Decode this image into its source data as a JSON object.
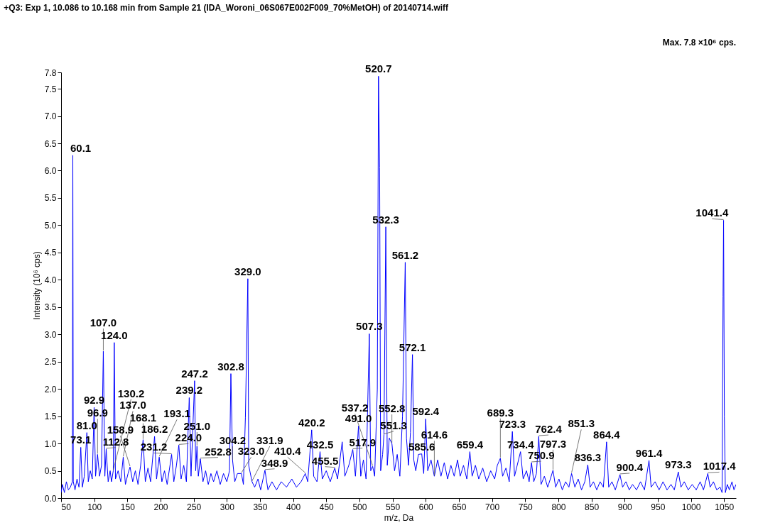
{
  "chart_data": {
    "type": "line",
    "title": "+Q3: Exp 1, 10.086 to 10.168 min from Sample 21 (IDA_Woroni_06S067E002F009_70%MetOH) of 20140714.wiff",
    "xlabel": "m/z, Da",
    "ylabel": "Intensity (10⁶ cps)",
    "xlim": [
      50,
      1068
    ],
    "ylim": [
      0,
      7.8
    ],
    "xticks": [
      50,
      100,
      150,
      200,
      250,
      300,
      350,
      400,
      450,
      500,
      550,
      600,
      650,
      700,
      750,
      800,
      850,
      900,
      950,
      1000,
      1050
    ],
    "yticks": [
      {
        "value": 0,
        "label": "0.0"
      },
      {
        "value": 0.5,
        "label": "0.5"
      },
      {
        "value": 1,
        "label": "1.0"
      },
      {
        "value": 1.5,
        "label": "1.5"
      },
      {
        "value": 2,
        "label": "2.0"
      },
      {
        "value": 2.5,
        "label": "2.5"
      },
      {
        "value": 3,
        "label": "3.0"
      },
      {
        "value": 3.5,
        "label": "3.5"
      },
      {
        "value": 4,
        "label": "4.0"
      },
      {
        "value": 4.5,
        "label": "4.5"
      },
      {
        "value": 5,
        "label": "5.0"
      },
      {
        "value": 5.5,
        "label": "5.5"
      },
      {
        "value": 6,
        "label": "6.0"
      },
      {
        "value": 6.5,
        "label": "6.5"
      },
      {
        "value": 7,
        "label": "7.0"
      },
      {
        "value": 7.5,
        "label": "7.5"
      },
      {
        "value": 7.8,
        "label": "7.8"
      }
    ],
    "grid": false,
    "marker": "none",
    "line_style": "solid",
    "series": [
      {
        "color": "#0000ff",
        "x": [
          50,
          52,
          55,
          58,
          61,
          64,
          67.0,
          67.7,
          68.4,
          71,
          74,
          77,
          79.7,
          82,
          85,
          88.9,
          91,
          94,
          97,
          99.8,
          102,
          105,
          108,
          111,
          113.7,
          116,
          118,
          121,
          124,
          126,
          128.7,
          130.2,
          132,
          136,
          140,
          143.7,
          147,
          151,
          154,
          158,
          162,
          166,
          170,
          173.7,
          177,
          181,
          185,
          191,
          194,
          198,
          202,
          206,
          210,
          216.7,
          220,
          224,
          227.6,
          231,
          235,
          239,
          243.3,
          246,
          251.4,
          253,
          255,
          257,
          260,
          264,
          268,
          272,
          276,
          280,
          285,
          290,
          295,
          300,
          304,
          306.1,
          308.7,
          312,
          316,
          322,
          325,
          328,
          331.7,
          333,
          338,
          342,
          347,
          351,
          357.5,
          362,
          368,
          375,
          382,
          390,
          398,
          405,
          412,
          418.4,
          422,
          428,
          431,
          436,
          440.6,
          444,
          450,
          456,
          462.8,
          467,
          474,
          478,
          484,
          490,
          494,
          498.6,
          502,
          506,
          510,
          514.9,
          517,
          520,
          523,
          527,
          528.8,
          530.5,
          532,
          535,
          537,
          539.8,
          542,
          545,
          549,
          553,
          557,
          561,
          565,
          569.1,
          571,
          574,
          577,
          580.0,
          582,
          585,
          589,
          594,
          597,
          600,
          603,
          608,
          613,
          618,
          623,
          628,
          633,
          638,
          643,
          648,
          652,
          657,
          662,
          666.6,
          670,
          675,
          680,
          686,
          692,
          698,
          704,
          708,
          712.6,
          716,
          721,
          726,
          730.7,
          734,
          738,
          743,
          747,
          752,
          756,
          759.6,
          763,
          767,
          770.5,
          774,
          779,
          784,
          788,
          792,
          796,
          801,
          806,
          811,
          816,
          820,
          825,
          830,
          835,
          840,
          844.5,
          848,
          853,
          858,
          863,
          868,
          872.8,
          876,
          881,
          886,
          893,
          897,
          902,
          907,
          912,
          918,
          924,
          930,
          936.8,
          940,
          946,
          952,
          958,
          964,
          970,
          975,
          981,
          985,
          990,
          996,
          1002,
          1008,
          1014,
          1019,
          1025.5,
          1029,
          1034,
          1039,
          1044,
          1047,
          1048.5,
          1049.3,
          1050.5,
          1052,
          1055,
          1058,
          1062,
          1065,
          1068
        ],
        "values": [
          0.1,
          0.25,
          0.1,
          0.3,
          0.15,
          0.2,
          0.3,
          6.28,
          0.3,
          0.15,
          0.35,
          0.2,
          0.93,
          0.2,
          0.4,
          1.2,
          0.3,
          0.5,
          0.35,
          1.66,
          0.4,
          0.8,
          0.4,
          0.6,
          2.69,
          0.4,
          0.9,
          0.3,
          0.5,
          0.3,
          0.5,
          2.85,
          0.35,
          0.5,
          0.3,
          0.75,
          0.25,
          0.45,
          0.57,
          0.3,
          0.5,
          0.25,
          0.6,
          1.07,
          0.3,
          0.55,
          0.3,
          1.13,
          0.35,
          0.75,
          0.3,
          0.5,
          0.25,
          0.8,
          0.3,
          0.6,
          0.97,
          0.35,
          0.6,
          0.3,
          1.84,
          0.4,
          2.15,
          0.5,
          0.95,
          0.4,
          0.72,
          0.3,
          0.5,
          0.25,
          0.45,
          0.3,
          0.5,
          0.25,
          0.45,
          0.3,
          0.5,
          2.28,
          0.69,
          0.3,
          0.45,
          0.45,
          0.25,
          1.48,
          4.02,
          0.6,
          0.3,
          0.2,
          0.35,
          0.15,
          0.51,
          0.15,
          0.3,
          0.15,
          0.3,
          0.2,
          0.35,
          0.2,
          0.3,
          0.45,
          0.3,
          1.25,
          0.4,
          0.3,
          0.85,
          0.35,
          0.5,
          0.3,
          0.55,
          0.35,
          1.03,
          0.4,
          0.6,
          0.89,
          0.4,
          1.32,
          0.4,
          0.7,
          0.35,
          3.01,
          0.5,
          0.58,
          0.4,
          2.0,
          7.73,
          6.05,
          0.5,
          0.8,
          1.16,
          4.97,
          0.6,
          1.1,
          1.0,
          0.5,
          0.8,
          0.4,
          1.5,
          4.32,
          1.1,
          0.6,
          1.2,
          2.63,
          0.7,
          0.5,
          0.8,
          0.81,
          0.45,
          1.45,
          0.5,
          0.7,
          0.4,
          0.7,
          0.4,
          0.65,
          0.35,
          0.6,
          0.4,
          0.7,
          0.4,
          0.6,
          0.35,
          0.85,
          0.4,
          0.6,
          0.35,
          0.55,
          0.3,
          0.5,
          0.35,
          0.6,
          0.73,
          0.4,
          0.55,
          0.3,
          1.22,
          0.4,
          0.6,
          0.85,
          0.35,
          0.5,
          0.3,
          0.65,
          0.3,
          0.45,
          1.13,
          0.25,
          0.4,
          0.2,
          0.35,
          0.51,
          0.2,
          0.35,
          0.15,
          0.3,
          0.2,
          0.45,
          0.2,
          0.35,
          0.15,
          0.3,
          0.61,
          0.2,
          0.3,
          0.15,
          0.3,
          0.2,
          1.03,
          0.2,
          0.3,
          0.15,
          0.43,
          0.2,
          0.3,
          0.15,
          0.25,
          0.15,
          0.3,
          0.15,
          0.69,
          0.2,
          0.3,
          0.15,
          0.3,
          0.15,
          0.25,
          0.15,
          0.48,
          0.2,
          0.3,
          0.15,
          0.25,
          0.15,
          0.3,
          0.15,
          0.45,
          0.2,
          0.3,
          0.15,
          0.2,
          0.1,
          3.7,
          5.09,
          1.5,
          0.1,
          0.25,
          0.15,
          0.3,
          0.15,
          0.25
        ]
      }
    ],
    "annotations": [
      "Max. 7.8 ×10⁶ cps.",
      {
        "text": "60.1",
        "x": 67.7,
        "y": 6.28
      },
      {
        "text": "520.7",
        "x": 528.8,
        "y": 7.73
      },
      {
        "text": "532.3",
        "x": 539.8,
        "y": 4.97
      },
      {
        "text": "561.2",
        "x": 569.1,
        "y": 4.32
      },
      {
        "text": "507.3",
        "x": 514.9,
        "y": 3.01
      },
      {
        "text": "572.1",
        "x": 580.0,
        "y": 2.63
      },
      {
        "text": "1041.4",
        "x": 1049.3,
        "y": 5.09
      },
      {
        "text": "329.0",
        "x": 331.7,
        "y": 4.02
      },
      {
        "text": "124.0",
        "x": 130.2,
        "y": 2.85
      },
      {
        "text": "107.0",
        "x": 113.7,
        "y": 2.69
      },
      {
        "text": "302.8",
        "x": 306.1,
        "y": 2.28
      },
      {
        "text": "247.2",
        "x": 251.4,
        "y": 2.15
      },
      {
        "text": "239.2",
        "x": 243.3,
        "y": 1.84
      },
      {
        "text": "92.9",
        "x": 99.8,
        "y": 1.66
      },
      {
        "text": "81.0",
        "x": 88.9,
        "y": 1.2
      },
      {
        "text": "73.1",
        "x": 79.7,
        "y": 0.93
      },
      {
        "text": "96.9",
        "x": 105,
        "y": 0.8
      },
      {
        "text": "112.8",
        "x": 118,
        "y": 0.9
      },
      {
        "text": "130.2",
        "x": 128.7,
        "y": 0.5
      },
      {
        "text": "137.0",
        "x": 143.7,
        "y": 0.75
      },
      {
        "text": "158.9",
        "x": 154,
        "y": 0.57
      },
      {
        "text": "168.1",
        "x": 173.7,
        "y": 1.07
      },
      {
        "text": "186.2",
        "x": 191,
        "y": 1.13
      },
      {
        "text": "193.1",
        "x": 198,
        "y": 0.75
      },
      {
        "text": "224.0",
        "x": 227.6,
        "y": 0.97
      },
      {
        "text": "231.2",
        "x": 216.7,
        "y": 0.8
      },
      {
        "text": "251.0",
        "x": 255,
        "y": 0.95
      },
      {
        "text": "252.8",
        "x": 260,
        "y": 0.72
      },
      {
        "text": "304.2",
        "x": 308.7,
        "y": 0.69
      },
      {
        "text": "323.0",
        "x": 322,
        "y": 0.45
      },
      {
        "text": "331.9",
        "x": 338,
        "y": 0.3
      },
      {
        "text": "348.9",
        "x": 357.5,
        "y": 0.51
      },
      {
        "text": "410.4",
        "x": 418.4,
        "y": 0.45
      },
      {
        "text": "420.2",
        "x": 428,
        "y": 1.25
      },
      {
        "text": "432.5",
        "x": 440.6,
        "y": 0.85
      },
      {
        "text": "455.5",
        "x": 462.8,
        "y": 0.55
      },
      {
        "text": "491.0",
        "x": 498.6,
        "y": 1.32
      },
      {
        "text": "517.9",
        "x": 490,
        "y": 0.89
      },
      {
        "text": "537.2",
        "x": 520,
        "y": 0.58
      },
      {
        "text": "551.3",
        "x": 537,
        "y": 1.16
      },
      {
        "text": "552.8",
        "x": 549,
        "y": 1.0
      },
      {
        "text": "592.4",
        "x": 600,
        "y": 1.45
      },
      {
        "text": "585.6",
        "x": 594,
        "y": 0.81
      },
      {
        "text": "614.6",
        "x": 613,
        "y": 0.4
      },
      {
        "text": "659.4",
        "x": 666.6,
        "y": 0.85
      },
      {
        "text": "689.3",
        "x": 712.6,
        "y": 0.73
      },
      {
        "text": "723.3",
        "x": 730.7,
        "y": 1.22
      },
      {
        "text": "734.4",
        "x": 743,
        "y": 0.85
      },
      {
        "text": "750.9",
        "x": 759.6,
        "y": 0.65
      },
      {
        "text": "762.4",
        "x": 770.5,
        "y": 1.13
      },
      {
        "text": "797.3",
        "x": 792,
        "y": 0.51
      },
      {
        "text": "836.3",
        "x": 844.5,
        "y": 0.61
      },
      {
        "text": "851.3",
        "x": 820,
        "y": 0.45
      },
      {
        "text": "864.4",
        "x": 872.8,
        "y": 1.03
      },
      {
        "text": "900.4",
        "x": 893,
        "y": 0.43
      },
      {
        "text": "961.4",
        "x": 936.8,
        "y": 0.69
      },
      {
        "text": "973.3",
        "x": 981,
        "y": 0.48
      },
      {
        "text": "1017.4",
        "x": 1025.5,
        "y": 0.45
      }
    ]
  }
}
